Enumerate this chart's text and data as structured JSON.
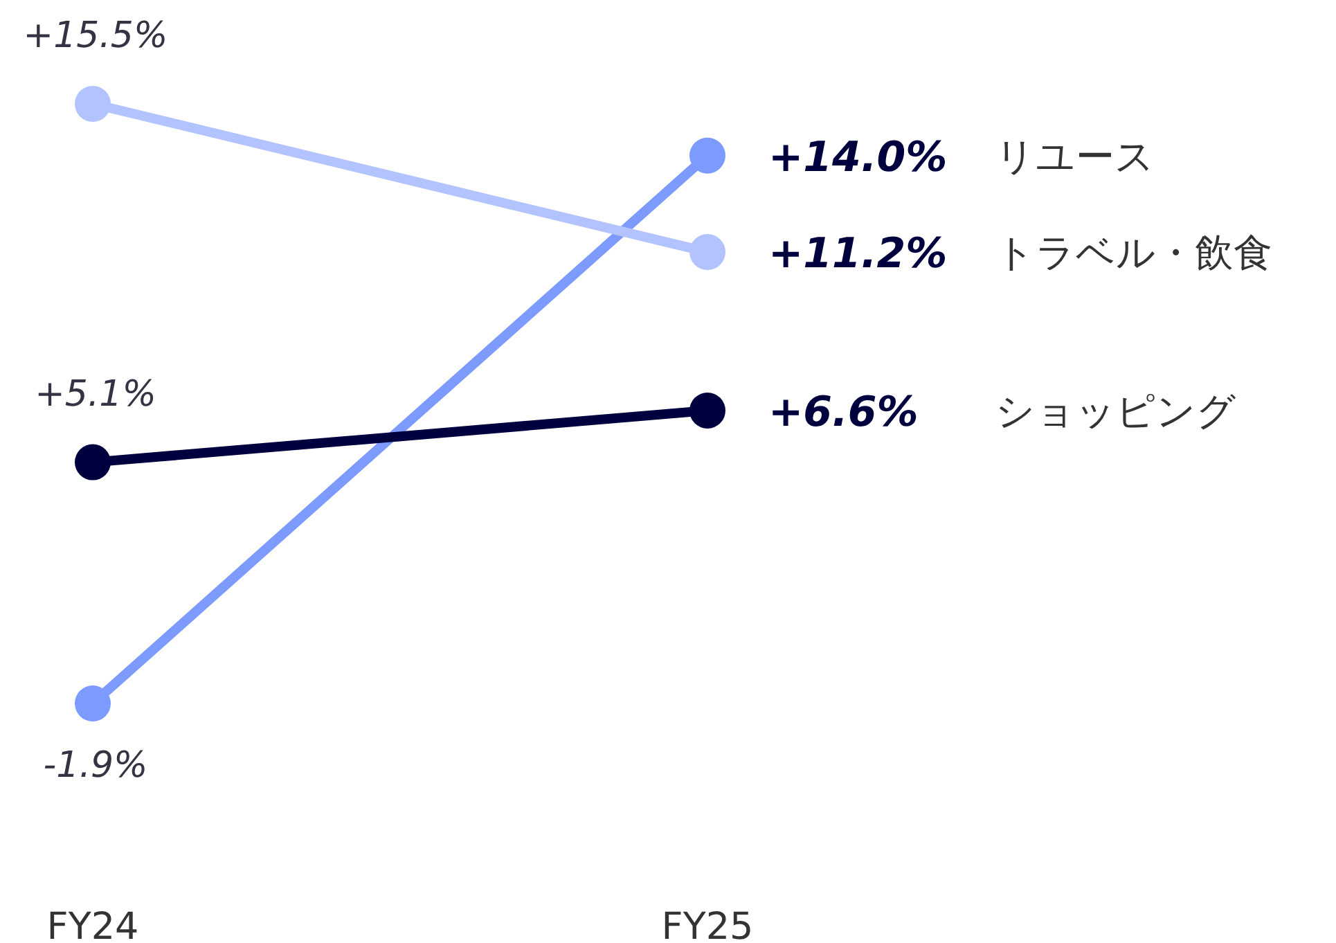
{
  "chart_data": {
    "type": "line",
    "categories": [
      "FY24",
      "FY25"
    ],
    "marker": "circle",
    "series": [
      {
        "name": "リユース",
        "color": "#7d9bff",
        "values": [
          -1.9,
          14.0
        ],
        "value_labels": [
          "-1.9%",
          "+14.0%"
        ]
      },
      {
        "name": "トラベル・飲食",
        "color": "#b3c3ff",
        "values": [
          15.5,
          11.2
        ],
        "value_labels": [
          "+15.5%",
          "+11.2%"
        ]
      },
      {
        "name": "ショッピング",
        "color": "#00003f",
        "values": [
          5.1,
          6.6
        ],
        "value_labels": [
          "+5.1%",
          "+6.6%"
        ]
      }
    ]
  }
}
